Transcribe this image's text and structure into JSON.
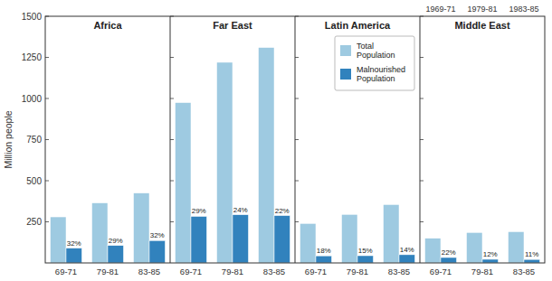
{
  "chart_data": [
    {
      "type": "bar",
      "title": "Africa",
      "ylabel": "Million people",
      "categories": [
        "69-71",
        "79-81",
        "83-85"
      ],
      "series": [
        {
          "color": "#9ecae1",
          "values": [
            280,
            365,
            425
          ]
        },
        {
          "color": "#3182bd",
          "values": [
            90,
            106,
            136
          ],
          "percentages": [
            "32%",
            "29%",
            "32%"
          ]
        }
      ],
      "ylim": [
        0,
        1500
      ],
      "yticks": [
        250,
        500,
        750,
        1000,
        1250,
        1500
      ]
    },
    {
      "type": "bar",
      "title": "Far East",
      "categories": [
        "69-71",
        "79-81",
        "83-85"
      ],
      "series": [
        {
          "color": "#9ecae1",
          "values": [
            975,
            1220,
            1310
          ]
        },
        {
          "color": "#3182bd",
          "values": [
            283,
            293,
            288
          ],
          "percentages": [
            "29%",
            "24%",
            "22%"
          ]
        }
      ],
      "ylim": [
        0,
        1500
      ],
      "yticks": [
        250,
        500,
        750,
        1000,
        1250,
        1500
      ],
      "tick_labels": "x"
    },
    {
      "type": "bar",
      "title": "Latin America",
      "categories": [
        "69-71",
        "79-81",
        "83-85"
      ],
      "series": [
        {
          "name": "Total\nPopulation",
          "color": "#9ecae1",
          "values": [
            240,
            295,
            355
          ]
        },
        {
          "name": "Malnourished\nPopulation",
          "color": "#3182bd",
          "values": [
            43,
            44,
            50
          ],
          "percentages": [
            "18%",
            "15%",
            "14%"
          ]
        }
      ],
      "ylim": [
        0,
        1500
      ],
      "yticks": [
        250,
        500,
        750,
        1000,
        1250,
        1500
      ],
      "tick_labels": "x",
      "legend": "upper right"
    },
    {
      "type": "bar",
      "title": "Middle East",
      "categories": [
        "69-71",
        "79-81",
        "83-85"
      ],
      "series": [
        {
          "color": "#9ecae1",
          "values": [
            150,
            185,
            190
          ]
        },
        {
          "color": "#3182bd",
          "values": [
            33,
            22,
            21
          ],
          "percentages": [
            "22%",
            "12%",
            "11%"
          ]
        }
      ],
      "ylim": [
        0,
        1500
      ],
      "yticks": [
        250,
        500,
        750,
        1000,
        1250,
        1500
      ],
      "tick_labels": "x",
      "annotations": [
        "1969-71",
        "1979-81",
        "1983-85"
      ]
    }
  ]
}
